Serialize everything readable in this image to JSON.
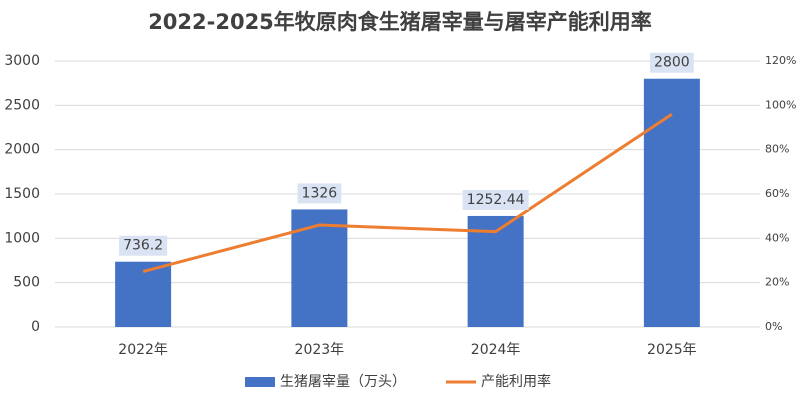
{
  "chart_data": {
    "type": "bar",
    "title": "2022-2025年牧原肉食生猪屠宰量与屠宰产能利用率",
    "categories": [
      "2022年",
      "2023年",
      "2024年",
      "2025年"
    ],
    "series": [
      {
        "name": "生猪屠宰量（万头）",
        "type": "bar",
        "color": "#4472c4",
        "values": [
          736.2,
          1326,
          1252.44,
          2800
        ]
      },
      {
        "name": "产能利用率",
        "type": "line",
        "axis": "y2",
        "color": "#ed7d31",
        "values": [
          25,
          46,
          43,
          96
        ]
      }
    ],
    "ylim": [
      0,
      3000
    ],
    "yticks": [
      0,
      500,
      1000,
      1500,
      2000,
      2500,
      3000
    ],
    "y2lim": [
      0,
      120
    ],
    "y2ticks": [
      {
        "value": 0,
        "label": "0%"
      },
      {
        "value": 20,
        "label": "20%"
      },
      {
        "value": 40,
        "label": "40%"
      },
      {
        "value": 60,
        "label": "60%"
      },
      {
        "value": 80,
        "label": "80%"
      },
      {
        "value": 100,
        "label": "100%"
      },
      {
        "value": 120,
        "label": "120%"
      }
    ],
    "grid": true,
    "legend": "bottom"
  }
}
